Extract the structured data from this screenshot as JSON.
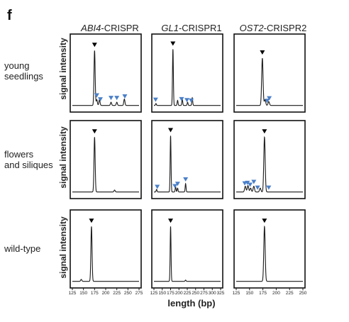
{
  "panel_letter": "f",
  "columns": [
    {
      "gene": "ABI4",
      "suffix": "-CRISPR"
    },
    {
      "gene": "GL1",
      "suffix": "-CRISPR1"
    },
    {
      "gene": "OST2",
      "suffix": "-CRISPR2"
    }
  ],
  "rows": [
    {
      "line1": "young",
      "line2": "seedlings"
    },
    {
      "line1": "flowers",
      "line2": "and siliques"
    },
    {
      "line1": "wild-type",
      "line2": ""
    }
  ],
  "ylabel": "signal intensity",
  "xlabel": "length (bp)",
  "colors": {
    "line": "#1a1a1a",
    "frame": "#111111",
    "main_marker": "#000000",
    "variant_marker": "#4a7fc8"
  },
  "chart_data": {
    "type": "line",
    "note_units": "x in bp, y in relative signal intensity (0-1)",
    "columns": [
      {
        "xlim": [
          125,
          275
        ],
        "ticks": [
          125,
          150,
          175,
          200,
          225,
          250,
          275
        ]
      },
      {
        "xlim": [
          125,
          325
        ],
        "ticks": [
          125,
          150,
          175,
          200,
          225,
          250,
          275,
          300,
          325
        ]
      },
      {
        "xlim": [
          125,
          250
        ],
        "ticks": [
          125,
          150,
          175,
          200,
          225,
          250
        ]
      }
    ],
    "panels": [
      [
        {
          "peaks": [
            [
              175,
              0.86
            ],
            [
              180,
              0.09
            ],
            [
              186,
              0.09
            ],
            [
              212,
              0.05
            ],
            [
              225,
              0.05
            ],
            [
              242,
              0.1
            ]
          ],
          "main_marker": 175,
          "variant_markers": [
            180,
            188,
            212,
            225,
            243
          ]
        },
        {
          "peaks": [
            [
              131,
              0.03
            ],
            [
              182,
              0.88
            ],
            [
              196,
              0.08
            ],
            [
              210,
              0.1
            ],
            [
              226,
              0.05
            ],
            [
              240,
              0.12
            ]
          ],
          "main_marker": 182,
          "variant_markers": [
            130,
            208,
            224,
            237
          ]
        },
        {
          "peaks": [
            [
              174,
              0.74
            ],
            [
              179,
              0.09
            ],
            [
              186,
              0.06
            ]
          ],
          "main_marker": 174,
          "variant_markers": [
            183,
            187
          ]
        }
      ],
      [
        {
          "peaks": [
            [
              175,
              0.86
            ],
            [
              220,
              0.03
            ]
          ],
          "main_marker": 175,
          "variant_markers": []
        },
        {
          "peaks": [
            [
              133,
              0.04
            ],
            [
              175,
              0.88
            ],
            [
              190,
              0.08
            ],
            [
              196,
              0.06
            ],
            [
              220,
              0.13
            ]
          ],
          "main_marker": 175,
          "variant_markers": [
            135,
            188,
            196,
            220
          ]
        },
        {
          "peaks": [
            [
              142,
              0.09
            ],
            [
              147,
              0.1
            ],
            [
              152,
              0.06
            ],
            [
              158,
              0.09
            ],
            [
              170,
              0.06
            ],
            [
              178,
              0.86
            ]
          ],
          "main_marker": 178,
          "variant_markers": [
            141,
            146,
            151,
            158,
            165,
            186
          ]
        }
      ],
      [
        {
          "peaks": [
            [
              145,
              0.03
            ],
            [
              168,
              0.86
            ]
          ],
          "main_marker": 168,
          "variant_markers": []
        },
        {
          "peaks": [
            [
              175,
              0.86
            ],
            [
              220,
              0.02
            ]
          ],
          "main_marker": 175,
          "variant_markers": []
        },
        {
          "peaks": [
            [
              178,
              0.86
            ]
          ],
          "main_marker": 178,
          "variant_markers": []
        }
      ]
    ]
  }
}
